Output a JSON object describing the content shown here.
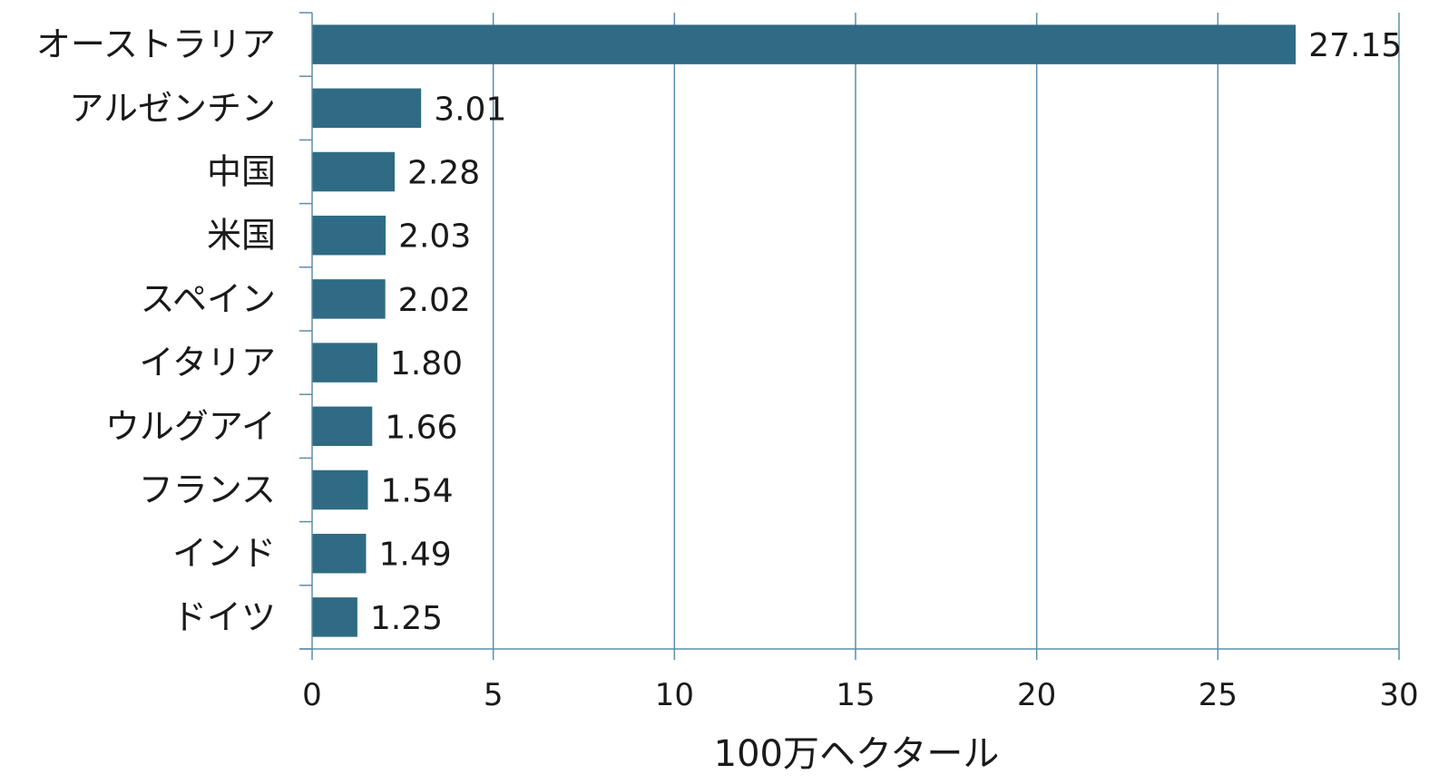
{
  "chart_data": {
    "type": "bar",
    "orientation": "horizontal",
    "categories": [
      "オーストラリア",
      "アルゼンチン",
      "中国",
      "米国",
      "スペイン",
      "イタリア",
      "ウルグアイ",
      "フランス",
      "インド",
      "ドイツ"
    ],
    "values": [
      27.15,
      3.01,
      2.28,
      2.03,
      2.02,
      1.8,
      1.66,
      1.54,
      1.49,
      1.25
    ],
    "value_labels": [
      "27.15",
      "3.01",
      "2.28",
      "2.03",
      "2.02",
      "1.80",
      "1.66",
      "1.54",
      "1.49",
      "1.25"
    ],
    "title": "",
    "xlabel": "100万ヘクタール",
    "ylabel": "",
    "xlim": [
      0,
      30
    ],
    "xticks": [
      0,
      5,
      10,
      15,
      20,
      25,
      30
    ],
    "xtick_labels": [
      "0",
      "5",
      "10",
      "15",
      "20",
      "25",
      "30"
    ],
    "grid": "vertical",
    "legend": "none",
    "colors": {
      "bar": "#2f6b84",
      "grid": "#5e8ea8",
      "axis": "#5e8ea8",
      "text": "#1a1a1a"
    }
  }
}
